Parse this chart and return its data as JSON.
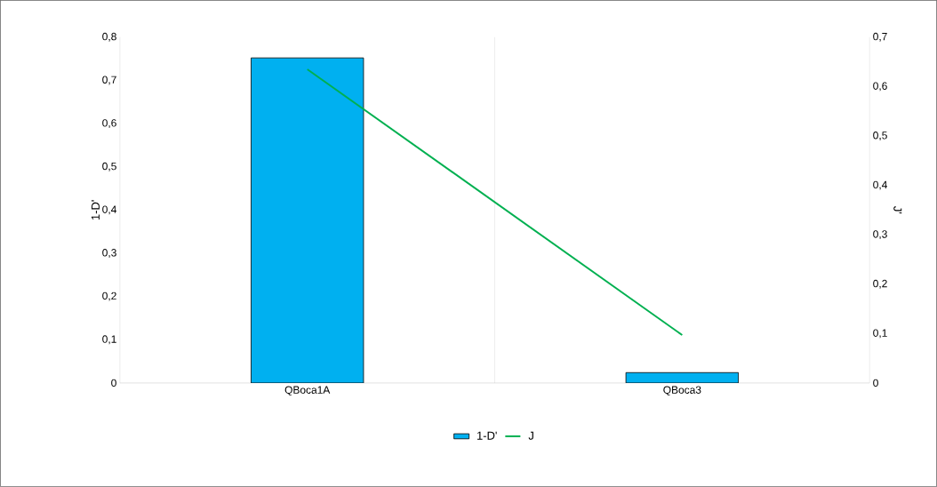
{
  "chart_data": {
    "type": "bar",
    "categories": [
      "QBoca1A",
      "QBoca3"
    ],
    "series": [
      {
        "name": "1-D'",
        "color": "#00b0f0",
        "values": [
          0.752,
          0.024
        ]
      },
      {
        "name": "J",
        "type": "line",
        "axis": "y2",
        "color": "#00b050",
        "values": [
          0.635,
          0.097
        ]
      }
    ],
    "ylabel": "1-D'",
    "y2label": "J'",
    "ylim": [
      0,
      0.8
    ],
    "yticks": [
      0,
      {
        "value": 0.1,
        "label": "0,1"
      },
      {
        "value": 0.2,
        "label": "0,2"
      },
      {
        "value": 0.3,
        "label": "0,3"
      },
      {
        "value": 0.4,
        "label": "0,4"
      },
      {
        "value": 0.5,
        "label": "0,5"
      },
      {
        "value": 0.6,
        "label": "0,6"
      },
      {
        "value": 0.7,
        "label": "0,7"
      },
      {
        "value": 0.8,
        "label": "0,8"
      }
    ],
    "y2lim": [
      0,
      0.7
    ],
    "y2ticks": [
      0,
      {
        "value": 0.1,
        "label": "0,1"
      },
      {
        "value": 0.2,
        "label": "0,2"
      },
      {
        "value": 0.3,
        "label": "0,3"
      },
      {
        "value": 0.4,
        "label": "0,4"
      },
      {
        "value": 0.5,
        "label": "0,5"
      },
      {
        "value": 0.6,
        "label": "0,6"
      },
      {
        "value": 0.7,
        "label": "0,7"
      }
    ],
    "grid": "x",
    "legend": "bottom",
    "marker": "none",
    "line_style": "solid"
  }
}
